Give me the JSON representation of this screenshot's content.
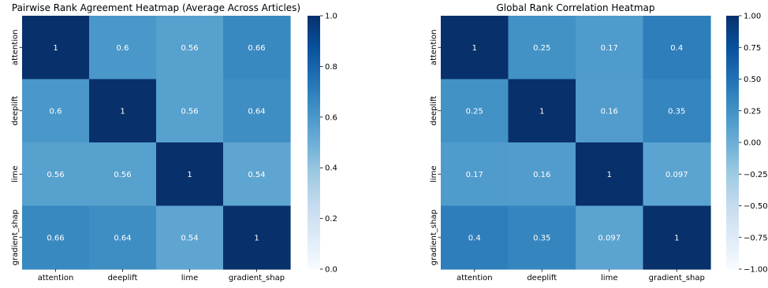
{
  "chart_data": [
    {
      "type": "heatmap",
      "title": "Pairwise Rank Agreement Heatmap (Average Across Articles)",
      "x_labels": [
        "attention",
        "deeplift",
        "lime",
        "gradient_shap"
      ],
      "y_labels": [
        "attention",
        "deeplift",
        "lime",
        "gradient_shap"
      ],
      "values": [
        [
          1,
          0.6,
          0.56,
          0.66
        ],
        [
          0.6,
          1,
          0.56,
          0.64
        ],
        [
          0.56,
          0.56,
          1,
          0.54
        ],
        [
          0.66,
          0.64,
          0.54,
          1
        ]
      ],
      "value_labels": [
        [
          "1",
          "0.6",
          "0.56",
          "0.66"
        ],
        [
          "0.6",
          "1",
          "0.56",
          "0.64"
        ],
        [
          "0.56",
          "0.56",
          "1",
          "0.54"
        ],
        [
          "0.66",
          "0.64",
          "0.54",
          "1"
        ]
      ],
      "colormap": "Blues",
      "vmin": 0,
      "vmax": 1,
      "colorbar_ticks": [
        0,
        0.2,
        0.4,
        0.6,
        0.8,
        1
      ],
      "colorbar_tick_labels": [
        "0.0",
        "0.2",
        "0.4",
        "0.6",
        "0.8",
        "1.0"
      ]
    },
    {
      "type": "heatmap",
      "title": "Global Rank Correlation Heatmap",
      "x_labels": [
        "attention",
        "deeplift",
        "lime",
        "gradient_shap"
      ],
      "y_labels": [
        "attention",
        "deeplift",
        "lime",
        "gradient_shap"
      ],
      "values": [
        [
          1,
          0.25,
          0.17,
          0.4
        ],
        [
          0.25,
          1,
          0.16,
          0.35
        ],
        [
          0.17,
          0.16,
          1,
          0.097
        ],
        [
          0.4,
          0.35,
          0.097,
          1
        ]
      ],
      "value_labels": [
        [
          "1",
          "0.25",
          "0.17",
          "0.4"
        ],
        [
          "0.25",
          "1",
          "0.16",
          "0.35"
        ],
        [
          "0.17",
          "0.16",
          "1",
          "0.097"
        ],
        [
          "0.4",
          "0.35",
          "0.097",
          "1"
        ]
      ],
      "colormap": "Blues",
      "vmin": -1,
      "vmax": 1,
      "colorbar_ticks": [
        -1,
        -0.75,
        -0.5,
        -0.25,
        0,
        0.25,
        0.5,
        0.75,
        1
      ],
      "colorbar_tick_labels": [
        "−1.00",
        "−0.75",
        "−0.50",
        "−0.25",
        "0.00",
        "0.25",
        "0.50",
        "0.75",
        "1.00"
      ]
    }
  ]
}
